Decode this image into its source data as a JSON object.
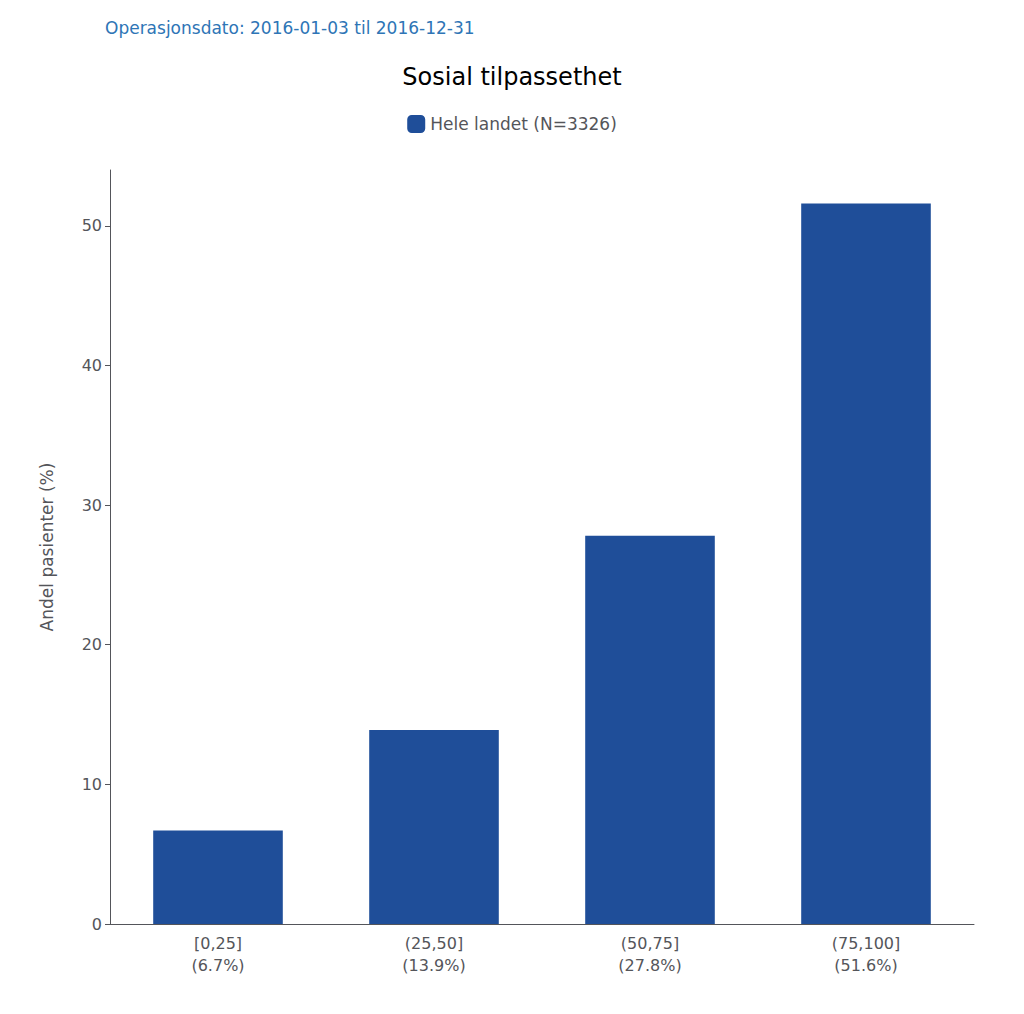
{
  "chart_data": {
    "type": "bar",
    "title": "Sosial tilpassethet",
    "subtitle": "Operasjonsdato: 2016-01-03 til 2016-12-31",
    "categories": [
      "[0,25]\n(6.7%)",
      "(25,50]\n(13.9%)",
      "(50,75]\n(27.8%)",
      "(75,100]\n(51.6%)"
    ],
    "series": [
      {
        "name": "Hele landet (N=3326)",
        "color": "#1F4E99",
        "values": [
          6.7,
          13.9,
          27.8,
          51.6
        ]
      }
    ],
    "ylabel": "Andel pasienter (%)",
    "ylim": [
      0,
      54
    ],
    "yticks": [
      0,
      10,
      20,
      30,
      40,
      50
    ],
    "grid": false,
    "legend": "top"
  }
}
